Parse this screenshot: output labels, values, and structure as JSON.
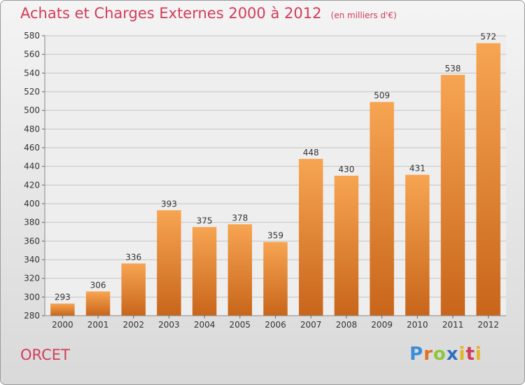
{
  "header": {
    "title": "Achats et Charges Externes 2000 à 2012",
    "unit": "(en milliers d'€)"
  },
  "footer": {
    "commune": "ORCET",
    "logo": "Proxiti"
  },
  "colors": {
    "title": "#d23c5a",
    "bar_top": "#f7a552",
    "bar_bottom": "#c8651a"
  },
  "chart_data": {
    "type": "bar",
    "title": "Achats et Charges Externes 2000 à 2012",
    "subtitle": "(en milliers d'€)",
    "xlabel": "",
    "ylabel": "",
    "categories": [
      "2000",
      "2001",
      "2002",
      "2003",
      "2004",
      "2005",
      "2006",
      "2007",
      "2008",
      "2009",
      "2010",
      "2011",
      "2012"
    ],
    "values": [
      293,
      306,
      336,
      393,
      375,
      378,
      359,
      448,
      430,
      509,
      431,
      538,
      572
    ],
    "ylim": [
      280,
      580
    ],
    "yticks": [
      280,
      300,
      320,
      340,
      360,
      380,
      400,
      420,
      440,
      460,
      480,
      500,
      520,
      540,
      560,
      580
    ],
    "grid": true,
    "legend": "none"
  }
}
